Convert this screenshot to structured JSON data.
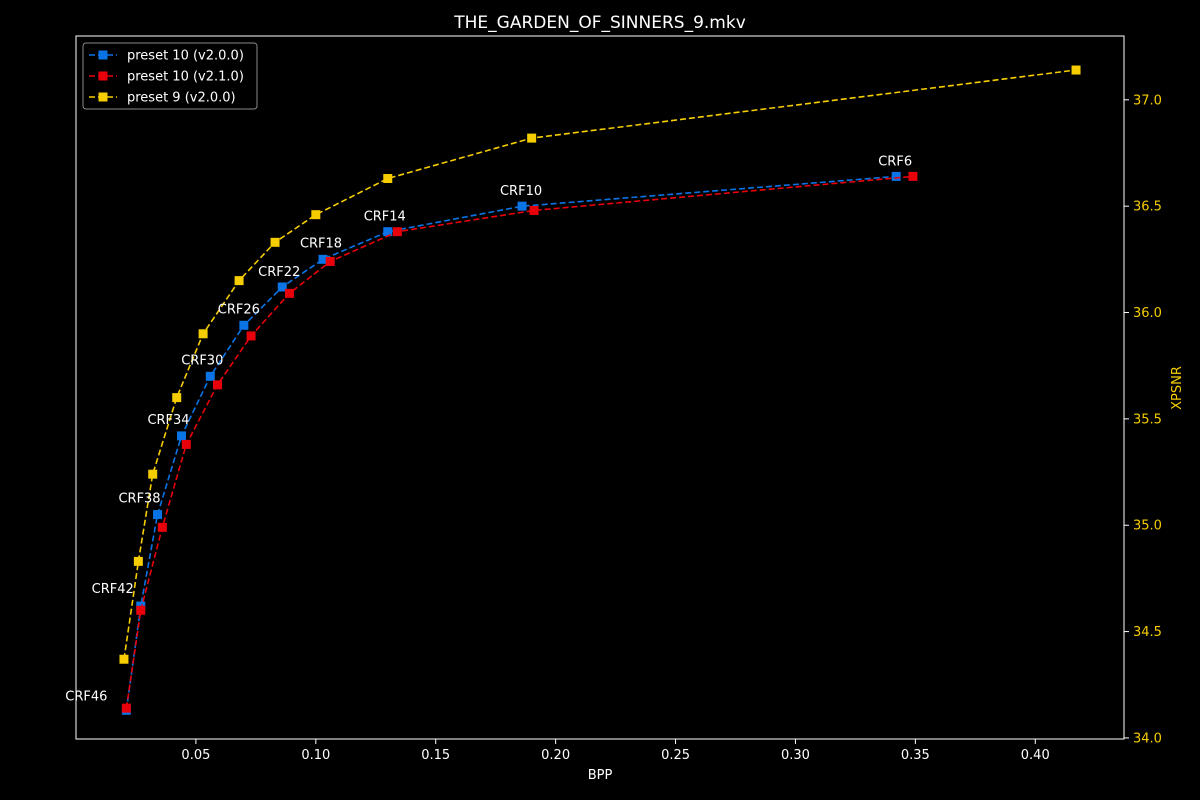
{
  "chart_data": {
    "type": "line",
    "title": "THE_GARDEN_OF_SINNERS_9.mkv",
    "xlabel": "BPP",
    "ylabel": "XPSNR",
    "xlim": [
      0.0,
      0.437
    ],
    "ylim": [
      33.995,
      37.3
    ],
    "x_ticks": [
      0.05,
      0.1,
      0.15,
      0.2,
      0.25,
      0.3,
      0.35,
      0.4
    ],
    "x_tick_labels": [
      "0.05",
      "0.10",
      "0.15",
      "0.20",
      "0.25",
      "0.30",
      "0.35",
      "0.40"
    ],
    "y_ticks": [
      34.0,
      34.5,
      35.0,
      35.5,
      36.0,
      36.5,
      37.0
    ],
    "y_tick_labels": [
      "34.0",
      "34.5",
      "35.0",
      "35.5",
      "36.0",
      "36.5",
      "37.0"
    ],
    "y_axis_side": "right",
    "grid": false,
    "legend_position": "top-left",
    "series": [
      {
        "name": "preset 10 (v2.0.0)",
        "color": "#0a74e6",
        "x": [
          0.021,
          0.027,
          0.034,
          0.044,
          0.056,
          0.07,
          0.086,
          0.103,
          0.13,
          0.186,
          0.342
        ],
        "y": [
          34.13,
          34.62,
          35.05,
          35.42,
          35.7,
          35.94,
          36.12,
          36.25,
          36.38,
          36.5,
          36.64
        ]
      },
      {
        "name": "preset 10 (v2.1.0)",
        "color": "#e8000b",
        "x": [
          0.021,
          0.027,
          0.036,
          0.046,
          0.059,
          0.073,
          0.089,
          0.106,
          0.134,
          0.191,
          0.349
        ],
        "y": [
          34.14,
          34.6,
          34.99,
          35.38,
          35.66,
          35.89,
          36.09,
          36.24,
          36.38,
          36.48,
          36.64
        ]
      },
      {
        "name": "preset 9 (v2.0.0)",
        "color": "#f5cd00",
        "x": [
          0.02,
          0.026,
          0.032,
          0.042,
          0.053,
          0.068,
          0.083,
          0.1,
          0.13,
          0.19,
          0.417
        ],
        "y": [
          34.37,
          34.83,
          35.24,
          35.6,
          35.9,
          36.15,
          36.33,
          36.46,
          36.63,
          36.82,
          37.14
        ]
      }
    ],
    "annotations": [
      {
        "text": "CRF46",
        "x": 0.021,
        "y": 34.13
      },
      {
        "text": "CRF42",
        "x": 0.027,
        "y": 34.62
      },
      {
        "text": "CRF38",
        "x": 0.034,
        "y": 35.05
      },
      {
        "text": "CRF34",
        "x": 0.044,
        "y": 35.42
      },
      {
        "text": "CRF30",
        "x": 0.056,
        "y": 35.7
      },
      {
        "text": "CRF26",
        "x": 0.07,
        "y": 35.94
      },
      {
        "text": "CRF22",
        "x": 0.086,
        "y": 36.12
      },
      {
        "text": "CRF18",
        "x": 0.103,
        "y": 36.25
      },
      {
        "text": "CRF14",
        "x": 0.13,
        "y": 36.38
      },
      {
        "text": "CRF10",
        "x": 0.186,
        "y": 36.5
      },
      {
        "text": "CRF6",
        "x": 0.342,
        "y": 36.64
      }
    ],
    "colors": {
      "background": "#000000",
      "axes": "#ffffff",
      "text": "#ffffff",
      "y_axis_text": "#f5cd00"
    }
  }
}
